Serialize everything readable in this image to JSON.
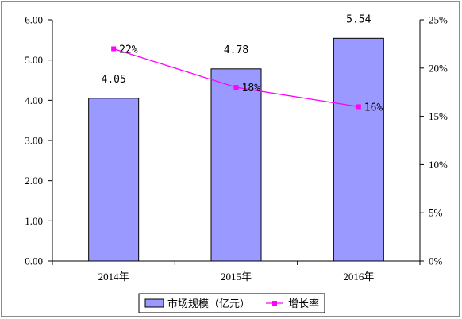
{
  "chart_data": {
    "type": "bar",
    "categories": [
      "2014年",
      "2015年",
      "2016年"
    ],
    "series": [
      {
        "name": "市场规模（亿元）",
        "type": "bar",
        "axis": "left",
        "values": [
          4.05,
          4.78,
          5.54
        ],
        "labels": [
          "4.05",
          "4.78",
          "5.54"
        ],
        "color": "#9999ff"
      },
      {
        "name": "增长率",
        "type": "line",
        "axis": "right",
        "values": [
          22,
          18,
          16
        ],
        "labels": [
          "22%",
          "18%",
          "16%"
        ],
        "color": "#ff00ff"
      }
    ],
    "y_left": {
      "ylim": [
        0,
        6
      ],
      "ticks": [
        "0.00",
        "1.00",
        "2.00",
        "3.00",
        "4.00",
        "5.00",
        "6.00"
      ]
    },
    "y_right": {
      "ylim": [
        0,
        25
      ],
      "ticks": [
        "0%",
        "5%",
        "10%",
        "15%",
        "20%",
        "25%"
      ]
    },
    "grid": false,
    "legend_position": "bottom"
  }
}
